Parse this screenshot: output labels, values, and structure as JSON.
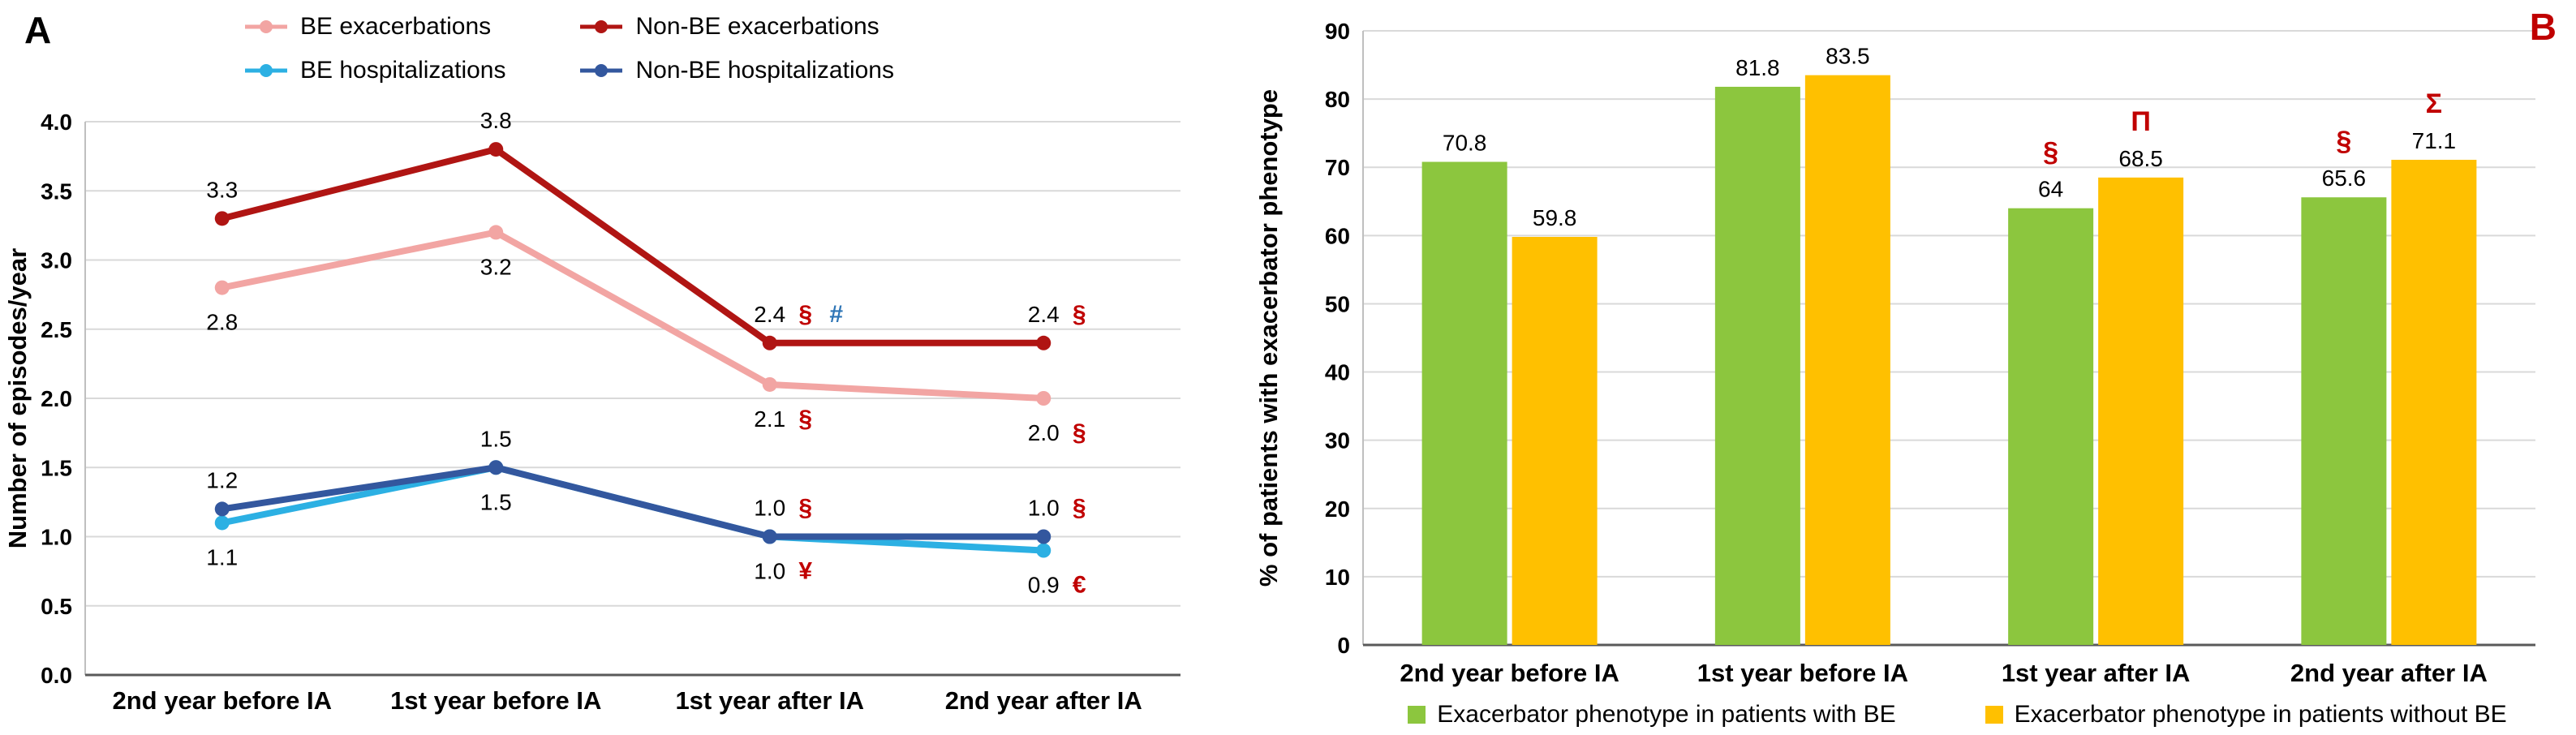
{
  "figure": {
    "background": "#FFFFFF"
  },
  "colors": {
    "grid": "#D9D9D9",
    "axis_light": "#BFBFBF",
    "axis_dark": "#595959",
    "annotation_red": "#C00000",
    "annotation_blue": "#2E75B6"
  },
  "chart_data": [
    {
      "id": "panel-a",
      "type": "line",
      "panel_label": "A",
      "panel_label_color": "#000000",
      "ylabel": "Number of episodes/year",
      "xlabel": "",
      "ylim": [
        0,
        4
      ],
      "ytick_step": 0.5,
      "grid": true,
      "legend_position": "top",
      "categories": [
        "2nd year before IA",
        "1st year before IA",
        "1st year after IA",
        "2nd year after IA"
      ],
      "series": [
        {
          "name": "BE exacerbations",
          "color": "#F2A5A3",
          "values": [
            2.8,
            3.2,
            2.1,
            2.0
          ],
          "labels": [
            "2.8",
            "3.2",
            "2.1",
            "2.0"
          ],
          "label_pos": "below",
          "marks": [
            null,
            null,
            [
              {
                "t": "§",
                "c": "#C00000"
              }
            ],
            [
              {
                "t": "§",
                "c": "#C00000"
              }
            ]
          ]
        },
        {
          "name": "Non-BE exacerbations",
          "color": "#B01513",
          "values": [
            3.3,
            3.8,
            2.4,
            2.4
          ],
          "labels": [
            "3.3",
            "3.8",
            "2.4",
            "2.4"
          ],
          "label_pos": "above",
          "marks": [
            null,
            null,
            [
              {
                "t": "§",
                "c": "#C00000"
              },
              {
                "t": "#",
                "c": "#2E75B6"
              }
            ],
            [
              {
                "t": "§",
                "c": "#C00000"
              }
            ]
          ]
        },
        {
          "name": "BE hospitalizations",
          "color": "#2CB0E3",
          "values": [
            1.1,
            1.5,
            1.0,
            0.9
          ],
          "labels": [
            "1.1",
            "1.5",
            "1.0",
            "0.9"
          ],
          "label_pos": "below",
          "marks": [
            null,
            null,
            [
              {
                "t": "¥",
                "c": "#C00000"
              }
            ],
            [
              {
                "t": "€",
                "c": "#C00000"
              }
            ]
          ]
        },
        {
          "name": "Non-BE hospitalizations",
          "color": "#33579E",
          "values": [
            1.2,
            1.5,
            1.0,
            1.0
          ],
          "labels": [
            "1.2",
            "1.5",
            "1.0",
            "1.0"
          ],
          "label_pos": "above",
          "marks": [
            null,
            null,
            [
              {
                "t": "§",
                "c": "#C00000"
              }
            ],
            [
              {
                "t": "§",
                "c": "#C00000"
              }
            ]
          ]
        }
      ]
    },
    {
      "id": "panel-b",
      "type": "bar",
      "panel_label": "B",
      "panel_label_color": "#C00000",
      "ylabel": "% of patients with exacerbator phenotype",
      "xlabel": "",
      "ylim": [
        0,
        90
      ],
      "ytick_step": 10,
      "grid": true,
      "legend_position": "bottom",
      "categories": [
        "2nd year before IA",
        "1st year before IA",
        "1st year after IA",
        "2nd year after IA"
      ],
      "series": [
        {
          "name": "Exacerbator phenotype in patients with BE",
          "color": "#8CC63E",
          "values": [
            70.8,
            81.8,
            64,
            65.6
          ],
          "labels": [
            "70.8",
            "81.8",
            "64",
            "65.6"
          ],
          "marks": [
            null,
            null,
            {
              "t": "§",
              "c": "#C00000"
            },
            {
              "t": "§",
              "c": "#C00000"
            }
          ]
        },
        {
          "name": "Exacerbator phenotype in patients without BE",
          "color": "#FFC000",
          "values": [
            59.8,
            83.5,
            68.5,
            71.1
          ],
          "labels": [
            "59.8",
            "83.5",
            "68.5",
            "71.1"
          ],
          "marks": [
            null,
            null,
            {
              "t": "Π",
              "c": "#C00000"
            },
            {
              "t": "Σ",
              "c": "#C00000"
            }
          ]
        }
      ]
    }
  ]
}
